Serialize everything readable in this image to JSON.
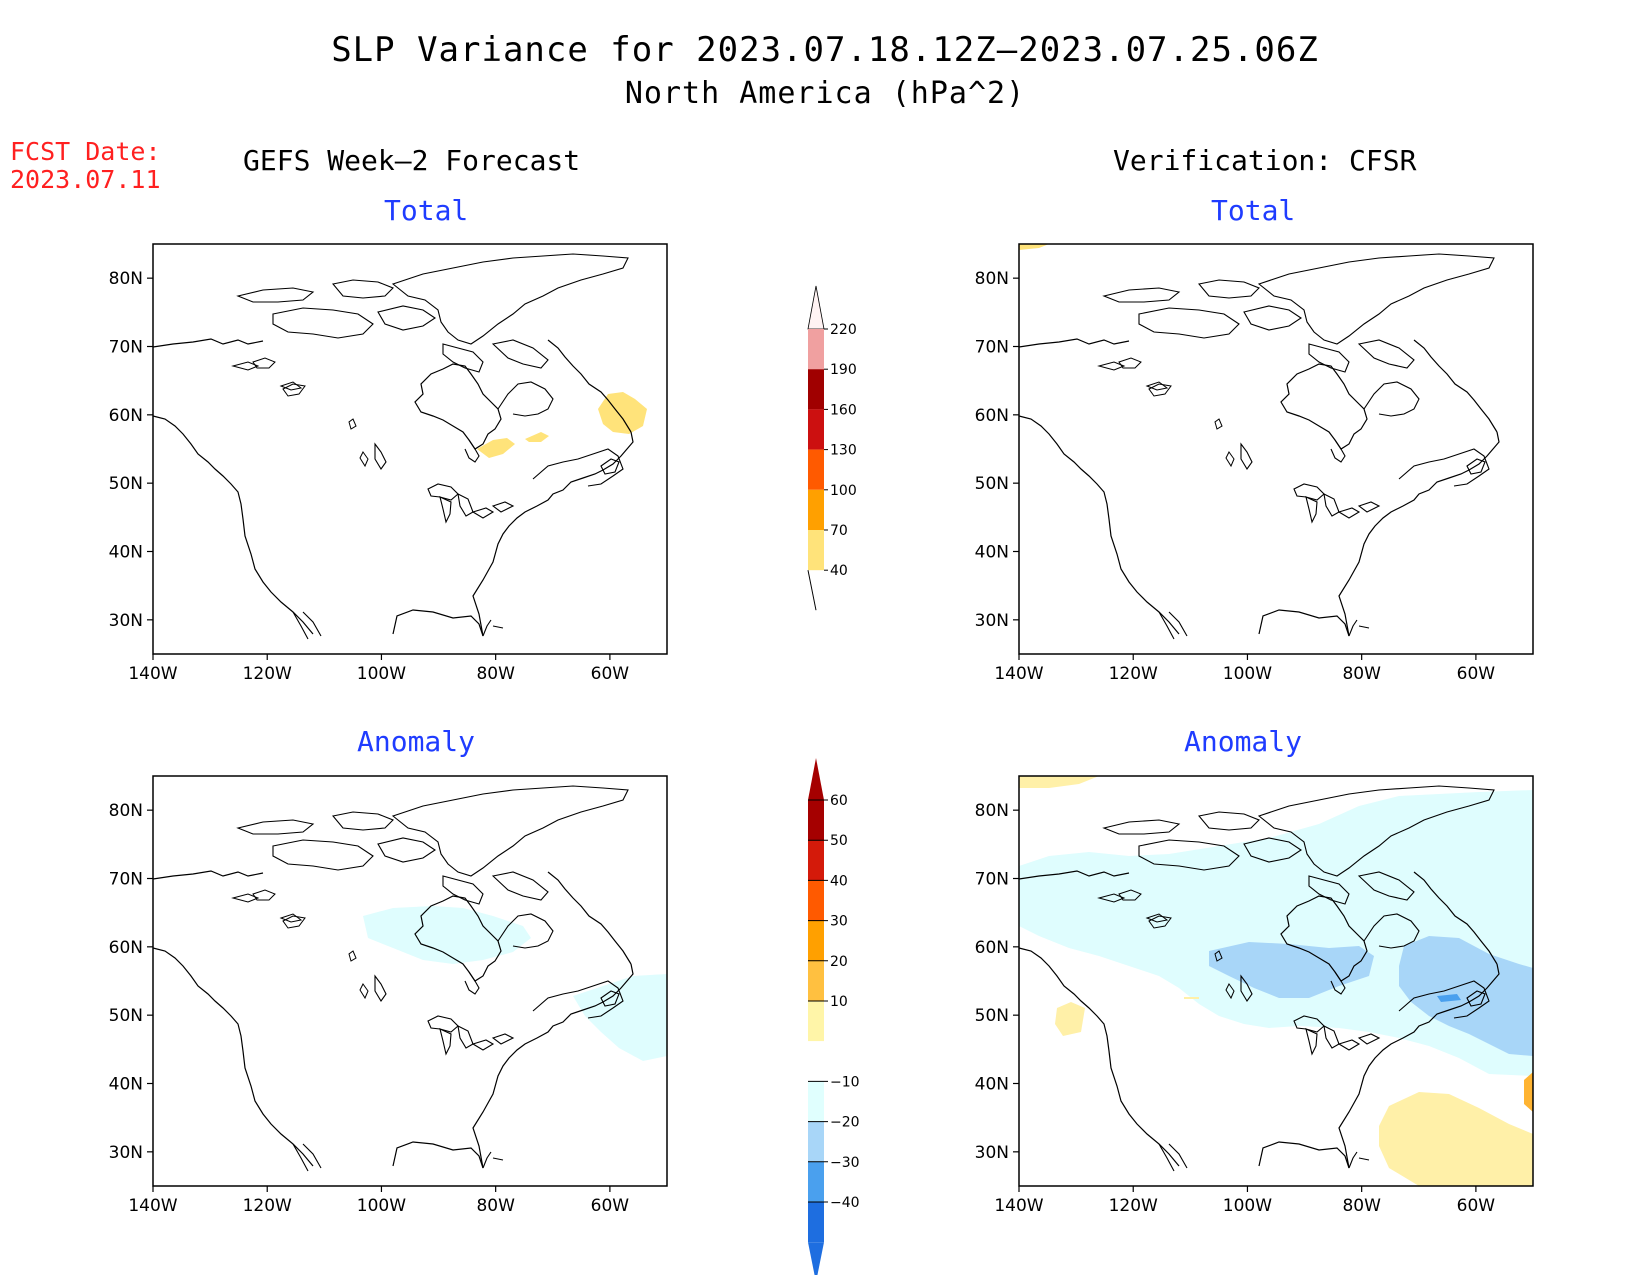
{
  "title": {
    "line1": "SLP Variance for 2023.07.18.12Z–2023.07.25.06Z",
    "line2": "North America (hPa^2)"
  },
  "fcst": {
    "label": "FCST Date:",
    "date": "2023.07.11"
  },
  "columns": {
    "left": "GEFS Week–2 Forecast",
    "right": "Verification: CFSR"
  },
  "panels": {
    "tl": "Total",
    "tr": "Total",
    "bl": "Anomaly",
    "br": "Anomaly"
  },
  "axes": {
    "lat_labels": [
      "80N",
      "70N",
      "60N",
      "50N",
      "40N",
      "30N"
    ],
    "lat_values": [
      80,
      70,
      60,
      50,
      40,
      30
    ],
    "lon_labels": [
      "140W",
      "120W",
      "100W",
      "80W",
      "60W"
    ],
    "lon_values": [
      -140,
      -120,
      -100,
      -80,
      -60
    ],
    "lon_range": [
      -140,
      -50
    ],
    "lat_range": [
      25,
      85
    ]
  },
  "colorbar_total": {
    "levels": [
      "220",
      "190",
      "160",
      "130",
      "100",
      "70",
      "40"
    ],
    "colors": [
      "#f0a0a0",
      "#a00000",
      "#cc1010",
      "#ff5a00",
      "#ffa000",
      "#ffe37a"
    ]
  },
  "colorbar_anomaly": {
    "levels": [
      "60",
      "50",
      "40",
      "30",
      "20",
      "10",
      "−10",
      "−20",
      "−30",
      "−40"
    ],
    "colors_top": [
      "#a50000",
      "#d41a0a",
      "#ff5a00",
      "#ffa000",
      "#ffc040",
      "#fff5a8"
    ],
    "colors_bottom": [
      "#e0fffe",
      "#a8d6f8",
      "#4aa0ee",
      "#1e6ee0"
    ]
  },
  "colors": {
    "yellow": "#ffe37a",
    "pale_yellow": "#fff0a8",
    "light_cyan": "#dffdfe",
    "light_blue": "#a8d6f8",
    "mid_blue": "#4aa0ee",
    "orange": "#ffb432"
  }
}
